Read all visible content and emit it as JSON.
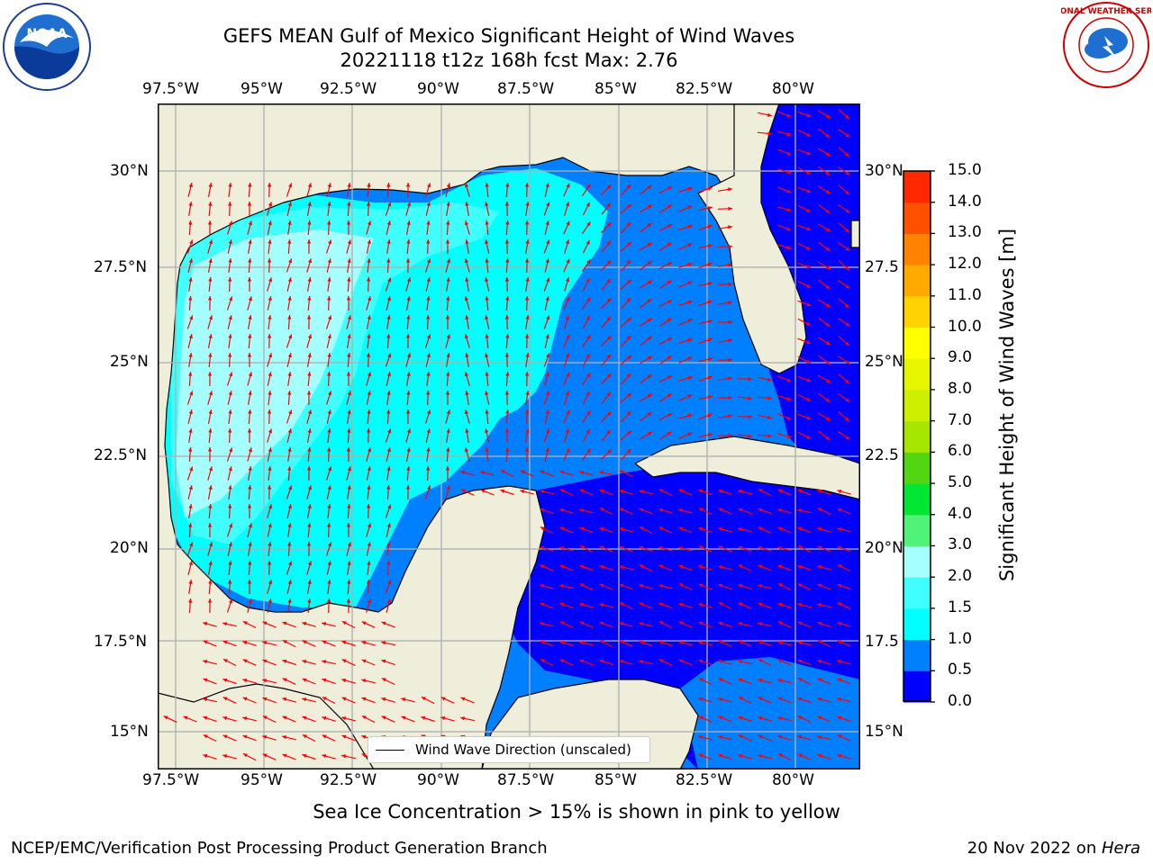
{
  "header": {
    "title_line1": "GEFS MEAN Gulf of Mexico Significant Height of Wind Waves",
    "title_line2": "20221118 t12z 168h fcst   Max: 2.76"
  },
  "logos": {
    "left": "NOAA",
    "right": "NATIONAL WEATHER SERVICE"
  },
  "map": {
    "lon_labels": [
      "97.5°W",
      "95°W",
      "92.5°W",
      "90°W",
      "87.5°W",
      "85°W",
      "82.5°W",
      "80°W"
    ],
    "lat_labels": [
      "30°N",
      "27.5°N",
      "25°N",
      "22.5°N",
      "20°N",
      "17.5°N",
      "15°N"
    ],
    "lat_labels_right": [
      "30°N",
      "27.5",
      "25°N",
      "22.5",
      "20°N",
      "17.5",
      "15°N"
    ],
    "lon_range": [
      -98,
      -78.2
    ],
    "lat_range": [
      14,
      31.6
    ],
    "legend_label": "Wind Wave Direction (unscaled)",
    "arrow_color": "#ff0000",
    "land_color": "#efeedb"
  },
  "colorbar": {
    "label": "Significant Height of Wind Waves [m]",
    "ticks": [
      "15.0",
      "14.0",
      "13.0",
      "12.0",
      "11.0",
      "10.0",
      "9.0",
      "8.0",
      "7.0",
      "6.0",
      "5.0",
      "4.0",
      "3.0",
      "2.0",
      "1.5",
      "1.0",
      "0.5",
      "0.0"
    ],
    "colors": [
      "#0000ff",
      "#0080ff",
      "#00ffff",
      "#40ffff",
      "#a6ffff",
      "#50f278",
      "#00e632",
      "#52d612",
      "#a6e600",
      "#ccf000",
      "#e6f500",
      "#ffff00",
      "#ffd200",
      "#ffaa00",
      "#ff8200",
      "#ff5000",
      "#ff2800"
    ]
  },
  "notes": {
    "sea_ice": "Sea Ice Concentration > 15% is shown in pink to yellow"
  },
  "footer": {
    "left": "NCEP/EMC/Verification Post Processing Product Generation Branch",
    "right_date": "20 Nov 2022 on ",
    "right_machine": "Hera"
  }
}
